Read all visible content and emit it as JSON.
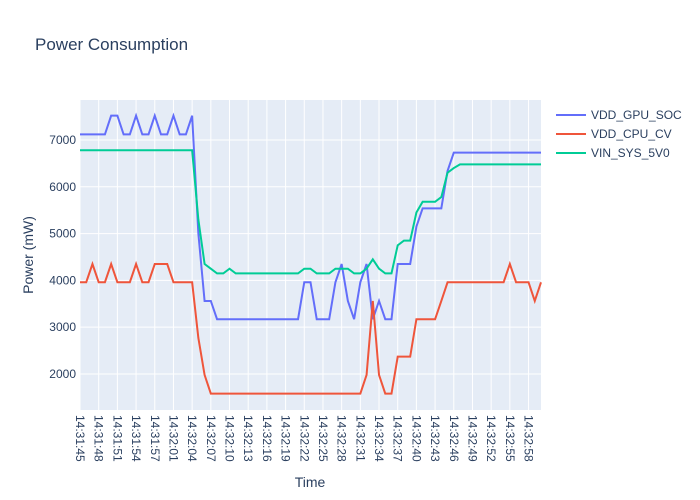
{
  "chart_data": {
    "type": "line",
    "title": "Power Consumption",
    "x_label": "Time",
    "y_label": "Power (mW)",
    "x": [
      "14:31:45",
      "14:31:46",
      "14:31:47",
      "14:31:48",
      "14:31:49",
      "14:31:50",
      "14:31:51",
      "14:31:52",
      "14:31:53",
      "14:31:54",
      "14:31:55",
      "14:31:56",
      "14:31:57",
      "14:31:58",
      "14:31:59",
      "14:32:01",
      "14:32:02",
      "14:32:03",
      "14:32:04",
      "14:32:05",
      "14:32:06",
      "14:32:07",
      "14:32:08",
      "14:32:09",
      "14:32:10",
      "14:32:11",
      "14:32:12",
      "14:32:13",
      "14:32:14",
      "14:32:15",
      "14:32:16",
      "14:32:17",
      "14:32:18",
      "14:32:19",
      "14:32:20",
      "14:32:21",
      "14:32:22",
      "14:32:23",
      "14:32:24",
      "14:32:25",
      "14:32:26",
      "14:32:27",
      "14:32:28",
      "14:32:29",
      "14:32:30",
      "14:32:31",
      "14:32:32",
      "14:32:33",
      "14:32:34",
      "14:32:35",
      "14:32:36",
      "14:32:37",
      "14:32:38",
      "14:32:39",
      "14:32:40",
      "14:32:41",
      "14:32:42",
      "14:32:43",
      "14:32:44",
      "14:32:45",
      "14:32:46",
      "14:32:47",
      "14:32:48",
      "14:32:49",
      "14:32:50",
      "14:32:51",
      "14:32:52",
      "14:32:53",
      "14:32:54",
      "14:32:55",
      "14:32:56",
      "14:32:57",
      "14:32:58",
      "14:32:59",
      "14:33:00"
    ],
    "xticks": [
      "14:31:45",
      "14:31:48",
      "14:31:51",
      "14:31:54",
      "14:31:57",
      "14:32:01",
      "14:32:04",
      "14:32:07",
      "14:32:10",
      "14:32:13",
      "14:32:16",
      "14:32:19",
      "14:32:22",
      "14:32:25",
      "14:32:28",
      "14:32:31",
      "14:32:34",
      "14:32:37",
      "14:32:40",
      "14:32:43",
      "14:32:46",
      "14:32:49",
      "14:32:52",
      "14:32:55",
      "14:32:58"
    ],
    "ylim": [
      1230,
      7855
    ],
    "yticks": [
      2000,
      3000,
      4000,
      5000,
      6000,
      7000
    ],
    "grid": true,
    "series": [
      {
        "name": "VDD_GPU_SOC",
        "color": "#636efa",
        "values": [
          7120,
          7120,
          7120,
          7120,
          7120,
          7520,
          7520,
          7120,
          7120,
          7520,
          7120,
          7120,
          7520,
          7120,
          7120,
          7520,
          7120,
          7120,
          7520,
          5000,
          3560,
          3560,
          3170,
          3170,
          3170,
          3170,
          3170,
          3170,
          3170,
          3170,
          3170,
          3170,
          3170,
          3170,
          3170,
          3170,
          3960,
          3960,
          3170,
          3170,
          3170,
          3960,
          4350,
          3560,
          3170,
          3960,
          4350,
          3170,
          3560,
          3170,
          3170,
          4350,
          4350,
          4350,
          5150,
          5540,
          5540,
          5540,
          5540,
          6340,
          6730,
          6730,
          6730,
          6730,
          6730,
          6730,
          6730,
          6730,
          6730,
          6730,
          6730,
          6730,
          6730,
          6730,
          6730
        ]
      },
      {
        "name": "VDD_CPU_CV",
        "color": "#ef553b",
        "values": [
          3960,
          3960,
          4350,
          3960,
          3960,
          4350,
          3960,
          3960,
          3960,
          4350,
          3960,
          3960,
          4350,
          4350,
          4350,
          3960,
          3960,
          3960,
          3960,
          2770,
          1980,
          1580,
          1580,
          1580,
          1580,
          1580,
          1580,
          1580,
          1580,
          1580,
          1580,
          1580,
          1580,
          1580,
          1580,
          1580,
          1580,
          1580,
          1580,
          1580,
          1580,
          1580,
          1580,
          1580,
          1580,
          1580,
          1980,
          3560,
          1980,
          1580,
          1580,
          2370,
          2370,
          2370,
          3170,
          3170,
          3170,
          3170,
          3560,
          3960,
          3960,
          3960,
          3960,
          3960,
          3960,
          3960,
          3960,
          3960,
          3960,
          4350,
          3960,
          3960,
          3960,
          3560,
          3960
        ]
      },
      {
        "name": "VIN_SYS_5V0",
        "color": "#00cc96",
        "values": [
          6780,
          6780,
          6780,
          6780,
          6780,
          6780,
          6780,
          6780,
          6780,
          6780,
          6780,
          6780,
          6780,
          6780,
          6780,
          6780,
          6780,
          6780,
          6780,
          5300,
          4350,
          4250,
          4150,
          4150,
          4250,
          4150,
          4150,
          4150,
          4150,
          4150,
          4150,
          4150,
          4150,
          4150,
          4150,
          4150,
          4250,
          4250,
          4150,
          4150,
          4150,
          4250,
          4250,
          4250,
          4150,
          4150,
          4250,
          4450,
          4250,
          4150,
          4150,
          4750,
          4850,
          4850,
          5450,
          5680,
          5680,
          5680,
          5780,
          6300,
          6400,
          6480,
          6480,
          6480,
          6480,
          6480,
          6480,
          6480,
          6480,
          6480,
          6480,
          6480,
          6480,
          6480,
          6480
        ]
      }
    ]
  }
}
